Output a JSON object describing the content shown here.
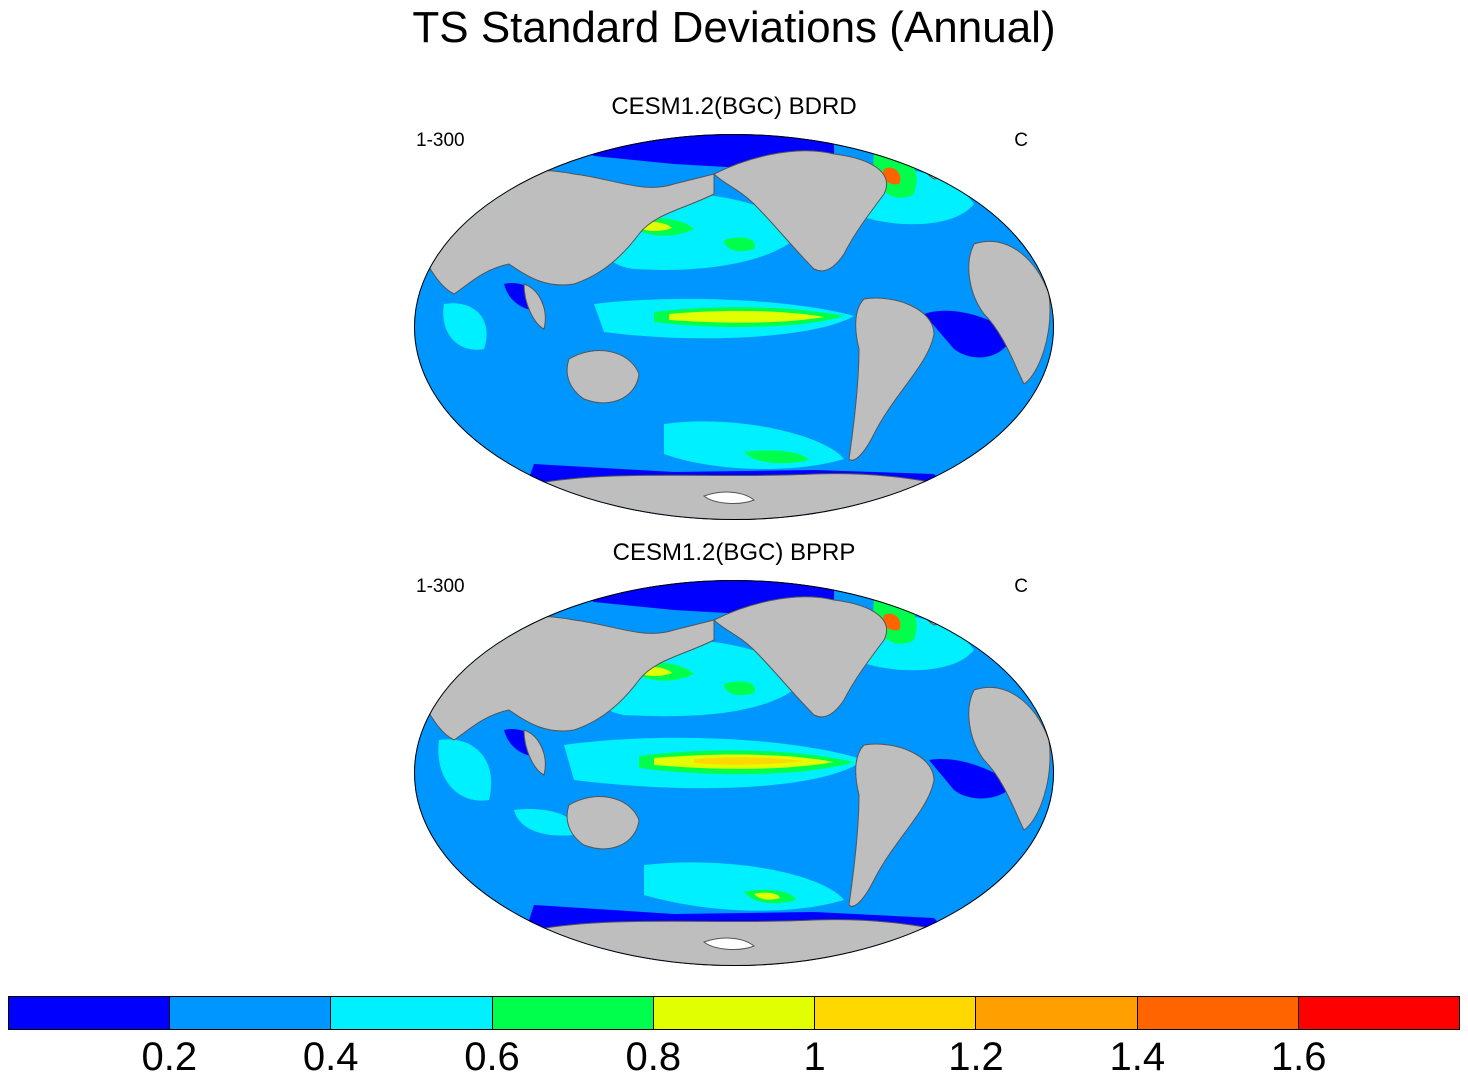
{
  "title": "TS Standard Deviations (Annual)",
  "panels": [
    {
      "title": "CESM1.2(BGC) BDRD",
      "left_label": "1-300",
      "right_label": "C"
    },
    {
      "title": "CESM1.2(BGC) BPRP",
      "left_label": "1-300",
      "right_label": "C"
    }
  ],
  "colorbar": {
    "colors": [
      "#0000ff",
      "#0096ff",
      "#00f0ff",
      "#00ff4c",
      "#e1ff00",
      "#ffd800",
      "#ffa000",
      "#ff6400",
      "#ff0000"
    ],
    "labels": [
      "0.2",
      "0.4",
      "0.6",
      "0.8",
      "1",
      "1.2",
      "1.4",
      "1.6"
    ]
  },
  "map": {
    "projection": "Winkel tripel",
    "land_color": "#bebebe",
    "ocean_background": "#0096ff"
  }
}
